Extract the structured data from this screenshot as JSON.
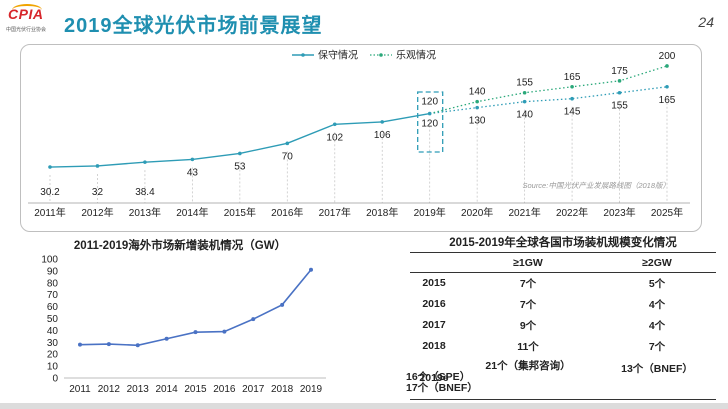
{
  "header": {
    "logo_text": "CPIA",
    "logo_sub": "中国光伏行业协会",
    "title": "2019全球光伏市场前景展望",
    "page_number": "24"
  },
  "chart_data": [
    {
      "type": "line",
      "x": [
        "2011年",
        "2012年",
        "2013年",
        "2014年",
        "2015年",
        "2016年",
        "2017年",
        "2018年",
        "2019年",
        "2020年",
        "2021年",
        "2022年",
        "2023年",
        "2025年"
      ],
      "series": [
        {
          "name": "保守情况",
          "color": "#2e9cb6",
          "values": [
            30.2,
            32,
            38.4,
            43,
            53,
            70,
            102,
            106,
            120,
            130,
            140,
            145,
            155,
            165
          ]
        },
        {
          "name": "乐观情况",
          "color": "#2aa87a",
          "values": [
            null,
            null,
            null,
            null,
            null,
            null,
            null,
            null,
            120,
            140,
            155,
            165,
            175,
            200
          ]
        }
      ],
      "point_labels_low": [
        "30.2",
        "32",
        "38.4",
        "43",
        "53",
        "70",
        "102",
        "106",
        "120",
        "130",
        "140",
        "145",
        "155",
        "165"
      ],
      "point_labels_high": [
        "120",
        "140",
        "155",
        "165",
        "175",
        "200"
      ],
      "legend_position": "top",
      "highlight_year": "2019年",
      "source_note": "Source:中国光伏产业发展路线图（2018版）",
      "ylim": [
        0,
        210
      ]
    },
    {
      "type": "line",
      "title": "2011-2019海外市场新增装机情况（GW）",
      "categories": [
        "2011",
        "2012",
        "2013",
        "2014",
        "2015",
        "2016",
        "2017",
        "2018",
        "2019"
      ],
      "series": [
        {
          "values": [
            28,
            28.5,
            27.5,
            33,
            38.5,
            39,
            49.5,
            61.5,
            91
          ],
          "color": "#4a72c4"
        }
      ],
      "yticks": [
        "0",
        "10",
        "20",
        "30",
        "40",
        "50",
        "60",
        "70",
        "80",
        "90",
        "100"
      ],
      "ylim": [
        0,
        100
      ]
    }
  ],
  "table": {
    "title": "2015-2019年全球各国市场装机规模变化情况",
    "headers": [
      "",
      "≥1GW",
      "≥2GW"
    ],
    "rows": [
      {
        "year": "2015",
        "ge1": "7个",
        "ge2": "5个"
      },
      {
        "year": "2016",
        "ge1": "7个",
        "ge2": "4个"
      },
      {
        "year": "2017",
        "ge1": "9个",
        "ge2": "4个"
      },
      {
        "year": "2018",
        "ge1": "11个",
        "ge2": "7个"
      }
    ],
    "last_row": {
      "year": "2019e",
      "ge1_lines": [
        "21个（集邦咨询）",
        "16个（SPE）",
        "17个（BNEF）"
      ],
      "ge2": "13个（BNEF）"
    }
  }
}
